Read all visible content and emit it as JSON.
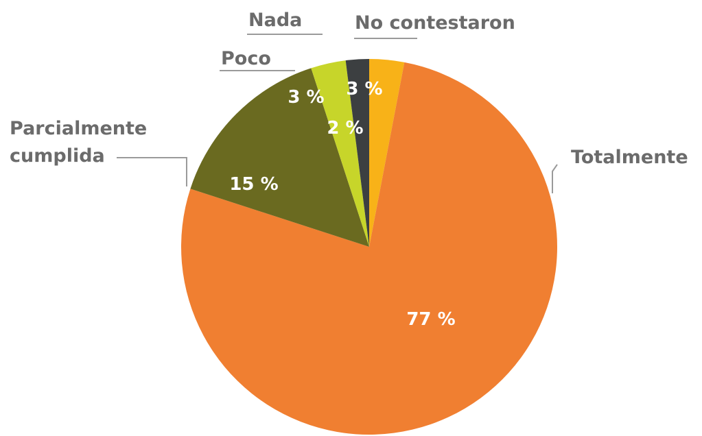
{
  "chart_data": {
    "type": "pie",
    "categories": [
      "No contestaron",
      "Totalmente",
      "Parcialmente cumplida",
      "Poco",
      "Nada"
    ],
    "values": [
      3,
      77,
      15,
      3,
      2
    ],
    "value_labels": [
      "3 %",
      "77 %",
      "15 %",
      "3 %",
      "2 %"
    ],
    "category_labels": {
      "no_contestaron": "No contestaron",
      "totalmente": "Totalmente",
      "parcialmente_line1": "Parcialmente",
      "parcialmente_line2": "cumplida",
      "poco": "Poco",
      "nada": "Nada"
    },
    "colors": [
      "#f8b218",
      "#f07f31",
      "#6a6a20",
      "#c7d52a",
      "#3c3f41"
    ],
    "start": "12 o'clock",
    "direction": "clockwise"
  }
}
